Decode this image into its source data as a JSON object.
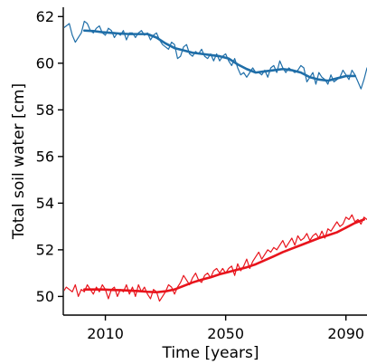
{
  "chart_data": {
    "type": "line",
    "xlabel": "Time [years]",
    "ylabel": "Total soil water [cm]",
    "xlim": [
      1996,
      2097
    ],
    "ylim": [
      49.2,
      62.4
    ],
    "xticks": [
      2010,
      2050,
      2090
    ],
    "yticks": [
      50,
      52,
      54,
      56,
      58,
      60,
      62
    ],
    "grid": false,
    "colors": {
      "blue": "#1f6ea8",
      "red": "#e8141c"
    },
    "series": [
      {
        "color_key": "blue",
        "style": "raw",
        "x": [
          1996,
          1997,
          1998,
          1999,
          2000,
          2001,
          2002,
          2003,
          2004,
          2005,
          2006,
          2007,
          2008,
          2009,
          2010,
          2011,
          2012,
          2013,
          2014,
          2015,
          2016,
          2017,
          2018,
          2019,
          2020,
          2021,
          2022,
          2023,
          2024,
          2025,
          2026,
          2027,
          2028,
          2029,
          2030,
          2031,
          2032,
          2033,
          2034,
          2035,
          2036,
          2037,
          2038,
          2039,
          2040,
          2041,
          2042,
          2043,
          2044,
          2045,
          2046,
          2047,
          2048,
          2049,
          2050,
          2051,
          2052,
          2053,
          2054,
          2055,
          2056,
          2057,
          2058,
          2059,
          2060,
          2061,
          2062,
          2063,
          2064,
          2065,
          2066,
          2067,
          2068,
          2069,
          2070,
          2071,
          2072,
          2073,
          2074,
          2075,
          2076,
          2077,
          2078,
          2079,
          2080,
          2081,
          2082,
          2083,
          2084,
          2085,
          2086,
          2087,
          2088,
          2089,
          2090,
          2091,
          2092,
          2093,
          2094,
          2095,
          2096,
          2097
        ],
        "values": [
          61.5,
          61.6,
          61.7,
          61.2,
          60.9,
          61.1,
          61.3,
          61.8,
          61.7,
          61.4,
          61.3,
          61.5,
          61.6,
          61.3,
          61.2,
          61.5,
          61.4,
          61.1,
          61.3,
          61.2,
          61.4,
          61.0,
          61.3,
          61.3,
          61.1,
          61.3,
          61.4,
          61.2,
          61.3,
          61.0,
          61.2,
          61.3,
          61.0,
          60.8,
          60.7,
          60.6,
          60.9,
          60.8,
          60.2,
          60.3,
          60.7,
          60.8,
          60.4,
          60.3,
          60.5,
          60.4,
          60.6,
          60.3,
          60.2,
          60.4,
          60.1,
          60.4,
          60.1,
          60.3,
          60.4,
          60.1,
          59.9,
          60.2,
          59.8,
          59.5,
          59.6,
          59.4,
          59.6,
          59.8,
          59.6,
          59.6,
          59.5,
          59.7,
          59.4,
          59.8,
          59.9,
          59.6,
          60.1,
          59.8,
          59.6,
          59.8,
          59.7,
          59.6,
          59.7,
          59.9,
          59.8,
          59.2,
          59.4,
          59.6,
          59.1,
          59.6,
          59.4,
          59.3,
          59.1,
          59.5,
          59.2,
          59.3,
          59.4,
          59.7,
          59.5,
          59.3,
          59.7,
          59.5,
          59.2,
          58.9,
          59.3,
          59.8
        ]
      },
      {
        "color_key": "blue",
        "style": "smooth",
        "x": [
          2003,
          2006,
          2009,
          2012,
          2015,
          2018,
          2021,
          2024,
          2027,
          2030,
          2033,
          2036,
          2039,
          2042,
          2045,
          2048,
          2051,
          2054,
          2057,
          2060,
          2063,
          2066,
          2069,
          2072,
          2075,
          2078,
          2081,
          2084,
          2087,
          2090,
          2093
        ],
        "values": [
          61.4,
          61.38,
          61.33,
          61.3,
          61.27,
          61.25,
          61.25,
          61.25,
          61.1,
          60.85,
          60.65,
          60.55,
          60.45,
          60.4,
          60.35,
          60.3,
          60.2,
          59.95,
          59.75,
          59.6,
          59.65,
          59.7,
          59.75,
          59.7,
          59.6,
          59.4,
          59.3,
          59.25,
          59.35,
          59.45,
          59.45
        ]
      },
      {
        "color_key": "red",
        "style": "raw",
        "x": [
          1996,
          1997,
          1998,
          1999,
          2000,
          2001,
          2002,
          2003,
          2004,
          2005,
          2006,
          2007,
          2008,
          2009,
          2010,
          2011,
          2012,
          2013,
          2014,
          2015,
          2016,
          2017,
          2018,
          2019,
          2020,
          2021,
          2022,
          2023,
          2024,
          2025,
          2026,
          2027,
          2028,
          2029,
          2030,
          2031,
          2032,
          2033,
          2034,
          2035,
          2036,
          2037,
          2038,
          2039,
          2040,
          2041,
          2042,
          2043,
          2044,
          2045,
          2046,
          2047,
          2048,
          2049,
          2050,
          2051,
          2052,
          2053,
          2054,
          2055,
          2056,
          2057,
          2058,
          2059,
          2060,
          2061,
          2062,
          2063,
          2064,
          2065,
          2066,
          2067,
          2068,
          2069,
          2070,
          2071,
          2072,
          2073,
          2074,
          2075,
          2076,
          2077,
          2078,
          2079,
          2080,
          2081,
          2082,
          2083,
          2084,
          2085,
          2086,
          2087,
          2088,
          2089,
          2090,
          2091,
          2092,
          2093,
          2094,
          2095,
          2096,
          2097
        ],
        "values": [
          50.2,
          50.4,
          50.3,
          50.2,
          50.5,
          50.0,
          50.3,
          50.2,
          50.5,
          50.3,
          50.1,
          50.4,
          50.2,
          50.5,
          50.3,
          49.9,
          50.3,
          50.4,
          50.0,
          50.3,
          50.2,
          50.5,
          50.1,
          50.4,
          50.0,
          50.5,
          50.2,
          50.4,
          50.1,
          49.9,
          50.3,
          50.2,
          49.8,
          50.0,
          50.2,
          50.5,
          50.4,
          50.1,
          50.4,
          50.6,
          50.9,
          50.7,
          50.5,
          50.8,
          51.0,
          50.7,
          50.6,
          50.9,
          51.0,
          50.8,
          51.1,
          51.2,
          51.0,
          51.2,
          51.0,
          51.2,
          51.3,
          50.9,
          51.4,
          51.1,
          51.3,
          51.6,
          51.2,
          51.5,
          51.7,
          51.9,
          51.6,
          51.8,
          52.0,
          51.9,
          52.1,
          52.0,
          52.2,
          52.4,
          52.1,
          52.3,
          52.5,
          52.2,
          52.6,
          52.4,
          52.5,
          52.7,
          52.4,
          52.6,
          52.7,
          52.5,
          52.8,
          52.5,
          52.9,
          52.8,
          53.0,
          53.2,
          53.0,
          53.1,
          53.4,
          53.3,
          53.5,
          53.2,
          53.3,
          53.1,
          53.4,
          53.3
        ]
      },
      {
        "color_key": "red",
        "style": "smooth",
        "x": [
          2003,
          2006,
          2009,
          2012,
          2015,
          2018,
          2021,
          2024,
          2027,
          2030,
          2033,
          2036,
          2039,
          2042,
          2045,
          2048,
          2051,
          2054,
          2057,
          2060,
          2063,
          2066,
          2069,
          2072,
          2075,
          2078,
          2081,
          2084,
          2087,
          2090,
          2093,
          2096
        ],
        "values": [
          50.3,
          50.3,
          50.3,
          50.28,
          50.27,
          50.25,
          50.23,
          50.2,
          50.18,
          50.22,
          50.3,
          50.45,
          50.6,
          50.72,
          50.82,
          50.95,
          51.05,
          51.15,
          51.25,
          51.38,
          51.55,
          51.72,
          51.9,
          52.05,
          52.2,
          52.35,
          52.5,
          52.62,
          52.75,
          52.95,
          53.15,
          53.3
        ]
      }
    ]
  }
}
